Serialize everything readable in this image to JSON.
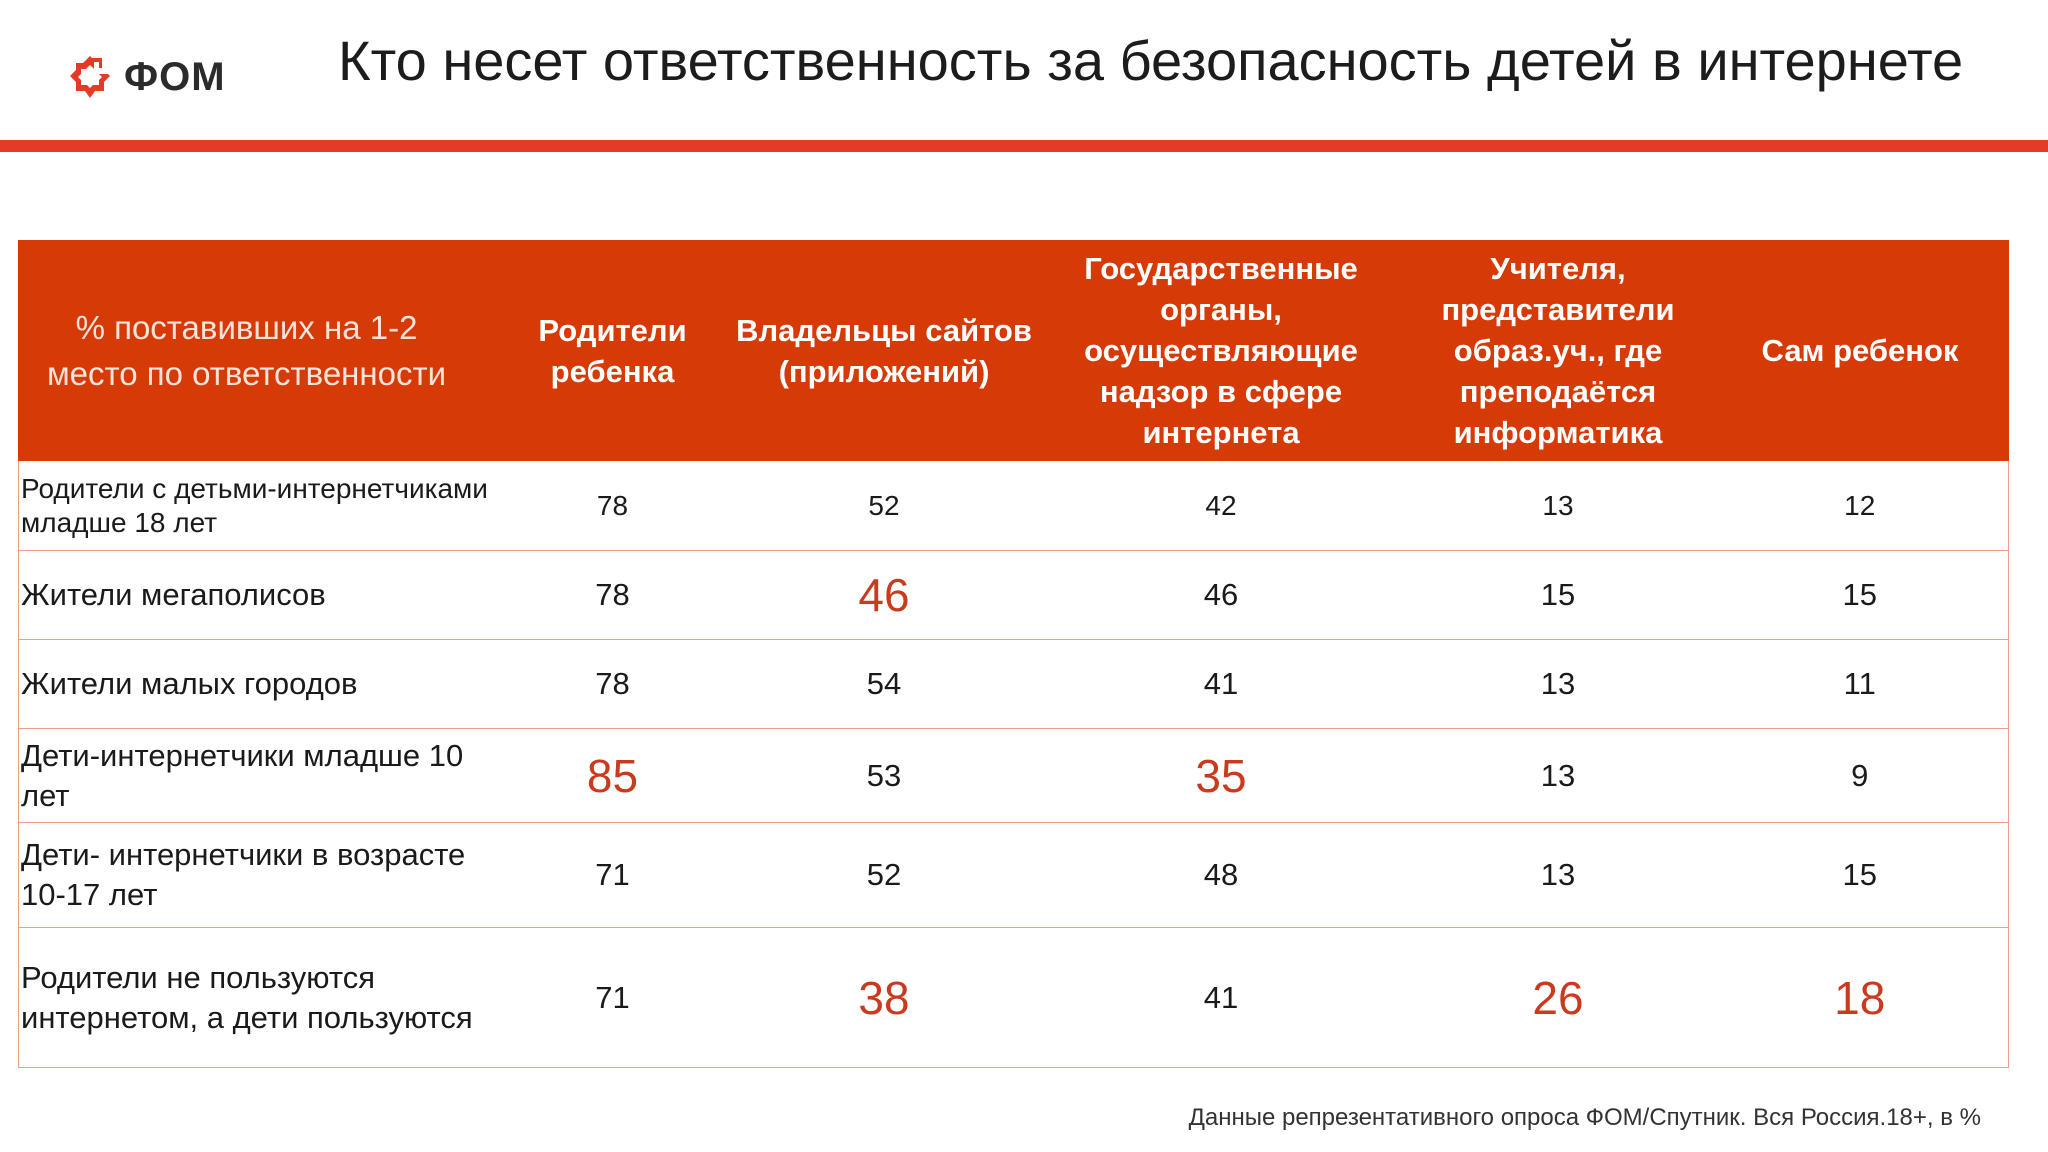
{
  "header": {
    "logo_text": "ФОМ",
    "logo_icon": "fom-logo-mark",
    "title": "Кто несет ответственность за безопасность детей в интернете"
  },
  "colors": {
    "accent": "#e33b26",
    "table_header_bg": "#d53a07",
    "highlight_text": "#c93a1e"
  },
  "table": {
    "corner_label": "% поставивших на 1-2 место по ответственности",
    "columns": [
      "Родители ребенка",
      "Владельцы сайтов (приложений)",
      "Государственные органы, осуществляющие надзор в сфере интернета",
      "Учителя, представители образ.уч., где преподаётся информатика",
      "Сам ребенок"
    ],
    "rows": [
      {
        "label": "Родители с детьми-интернетчиками младше 18 лет",
        "values": [
          "78",
          "52",
          "42",
          "13",
          "12"
        ],
        "highlight": [
          false,
          false,
          false,
          false,
          false
        ]
      },
      {
        "label": "Жители мегаполисов",
        "values": [
          "78",
          "46",
          "46",
          "15",
          "15"
        ],
        "highlight": [
          false,
          true,
          false,
          false,
          false
        ]
      },
      {
        "label": "Жители малых городов",
        "values": [
          "78",
          "54",
          "41",
          "13",
          "11"
        ],
        "highlight": [
          false,
          false,
          false,
          false,
          false
        ]
      },
      {
        "label": "Дети-интернетчики младше 10 лет",
        "values": [
          "85",
          "53",
          "35",
          "13",
          "9"
        ],
        "highlight": [
          true,
          false,
          true,
          false,
          false
        ]
      },
      {
        "label": "Дети- интернетчики в возрасте 10-17 лет",
        "values": [
          "71",
          "52",
          "48",
          "13",
          "15"
        ],
        "highlight": [
          false,
          false,
          false,
          false,
          false
        ]
      },
      {
        "label": "Родители не пользуются интернетом, а дети пользуются",
        "values": [
          "71",
          "38",
          "41",
          "26",
          "18"
        ],
        "highlight": [
          false,
          true,
          false,
          true,
          true
        ]
      }
    ]
  },
  "footnote": "Данные репрезентативного опроса ФОМ/Спутник. Вся Россия.18+, в %"
}
